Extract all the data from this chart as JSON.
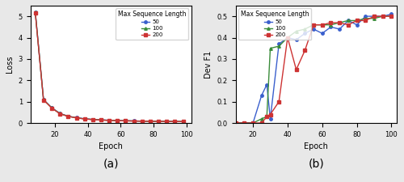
{
  "loss": {
    "epochs": [
      8,
      13,
      18,
      23,
      28,
      33,
      38,
      43,
      48,
      53,
      58,
      63,
      68,
      73,
      78,
      83,
      88,
      93,
      98
    ],
    "seq50": [
      5.2,
      1.1,
      0.72,
      0.45,
      0.32,
      0.25,
      0.2,
      0.17,
      0.15,
      0.13,
      0.12,
      0.11,
      0.1,
      0.09,
      0.085,
      0.08,
      0.078,
      0.075,
      0.072
    ],
    "seq100": [
      5.18,
      1.09,
      0.71,
      0.44,
      0.315,
      0.245,
      0.195,
      0.165,
      0.145,
      0.125,
      0.115,
      0.105,
      0.095,
      0.088,
      0.082,
      0.078,
      0.075,
      0.072,
      0.069
    ],
    "seq200": [
      5.15,
      1.08,
      0.7,
      0.43,
      0.31,
      0.24,
      0.19,
      0.16,
      0.14,
      0.12,
      0.11,
      0.1,
      0.092,
      0.086,
      0.08,
      0.076,
      0.073,
      0.07,
      0.068
    ],
    "xlabel": "Epoch",
    "ylabel": "Loss",
    "ylim": [
      0,
      5.5
    ],
    "xlim": [
      5,
      103
    ],
    "xticks": [
      20,
      40,
      60,
      80,
      100
    ],
    "legend_title": "Max Sequence Length",
    "legend_labels": [
      "50",
      "100",
      "200"
    ]
  },
  "f1": {
    "epochs": [
      10,
      15,
      20,
      25,
      28,
      30,
      35,
      40,
      45,
      50,
      55,
      60,
      65,
      70,
      75,
      80,
      85,
      90,
      95,
      100
    ],
    "seq50": [
      0.0,
      0.0,
      0.0,
      0.13,
      0.18,
      0.02,
      0.37,
      0.4,
      0.39,
      0.42,
      0.44,
      0.42,
      0.45,
      0.44,
      0.48,
      0.46,
      0.5,
      0.5,
      0.5,
      0.51
    ],
    "seq100": [
      0.0,
      0.0,
      0.0,
      0.02,
      0.03,
      0.35,
      0.36,
      0.4,
      0.43,
      0.44,
      0.46,
      0.46,
      0.46,
      0.47,
      0.48,
      0.48,
      0.49,
      0.49,
      0.5,
      0.5
    ],
    "seq200": [
      0.0,
      0.0,
      0.0,
      0.0,
      0.03,
      0.04,
      0.1,
      0.4,
      0.25,
      0.34,
      0.46,
      0.46,
      0.47,
      0.47,
      0.46,
      0.48,
      0.48,
      0.5,
      0.5,
      0.5
    ],
    "xlabel": "Epoch",
    "ylabel": "Dev F1",
    "ylim": [
      0,
      0.55
    ],
    "xlim": [
      10,
      103
    ],
    "xticks": [
      20,
      40,
      60,
      80,
      100
    ],
    "legend_title": "Max Sequence Length",
    "legend_labels": [
      "50",
      "100",
      "200"
    ]
  },
  "colors": {
    "seq50": "#3a5fcd",
    "seq100": "#3a8c3a",
    "seq200": "#cd3333"
  },
  "markers": {
    "seq50": "o",
    "seq100": "^",
    "seq200": "s"
  },
  "subtitle_a": "(a)",
  "subtitle_b": "(b)",
  "fig_bgcolor": "#e8e8e8"
}
